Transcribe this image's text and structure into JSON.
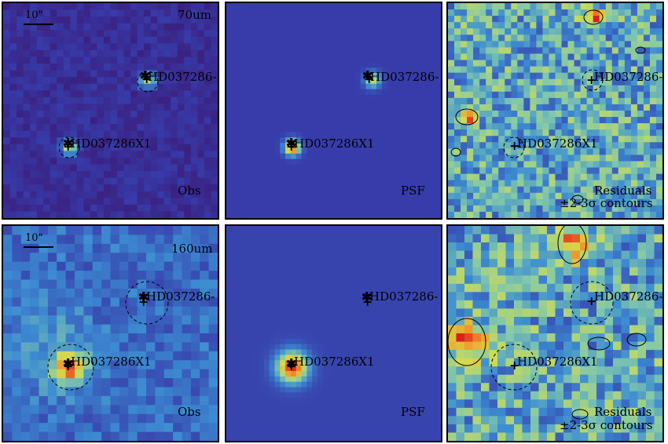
{
  "scale_bar": "10\"",
  "rows": [
    {
      "band": "70um",
      "panels": [
        {
          "type": "Obs",
          "label": "Obs"
        },
        {
          "type": "PSF",
          "label": "PSF"
        },
        {
          "type": "Residuals",
          "label": "Residuals",
          "sublabel": "±2-3σ contours"
        }
      ],
      "sources": [
        "HD037286-",
        "HD037286X1"
      ]
    },
    {
      "band": "160um",
      "panels": [
        {
          "type": "Obs",
          "label": "Obs"
        },
        {
          "type": "PSF",
          "label": "PSF"
        },
        {
          "type": "Residuals",
          "label": "Residuals",
          "sublabel": "±2-3σ contours"
        }
      ],
      "sources": [
        "HD037286-",
        "HD037286X1"
      ]
    }
  ],
  "markers": {
    "star": "✱",
    "cross": "+"
  },
  "colors": {
    "background_obs": "#3a3aa0",
    "background_psf": "#3b3ca8",
    "hot": "#d62020",
    "warm": "#e8c020",
    "cool": "#3a8fd0",
    "border": "#000000"
  }
}
